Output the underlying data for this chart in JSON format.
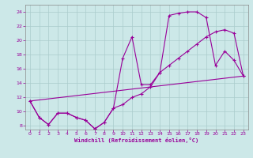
{
  "xlabel": "Windchill (Refroidissement éolien,°C)",
  "background_color": "#cce8e8",
  "grid_color": "#aacccc",
  "line_color": "#990099",
  "xlim": [
    -0.5,
    23.5
  ],
  "ylim": [
    7.5,
    25.0
  ],
  "xticks": [
    0,
    1,
    2,
    3,
    4,
    5,
    6,
    7,
    8,
    9,
    10,
    11,
    12,
    13,
    14,
    15,
    16,
    17,
    18,
    19,
    20,
    21,
    22,
    23
  ],
  "yticks": [
    8,
    10,
    12,
    14,
    16,
    18,
    20,
    22,
    24
  ],
  "series1_x": [
    0,
    1,
    2,
    3,
    4,
    5,
    6,
    7,
    8,
    9,
    10,
    11,
    12,
    13,
    14,
    15,
    16,
    17,
    18,
    19,
    20,
    21,
    22,
    23
  ],
  "series1_y": [
    11.5,
    9.2,
    8.2,
    9.8,
    9.8,
    9.2,
    8.8,
    7.6,
    8.5,
    10.5,
    17.5,
    20.5,
    13.8,
    13.8,
    15.5,
    23.5,
    23.8,
    24.0,
    24.0,
    23.2,
    16.5,
    18.5,
    17.2,
    15.0
  ],
  "series2_x": [
    0,
    1,
    2,
    3,
    4,
    5,
    6,
    7,
    8,
    9,
    10,
    11,
    12,
    13,
    14,
    15,
    16,
    17,
    18,
    19,
    20,
    21,
    22,
    23
  ],
  "series2_y": [
    11.5,
    9.2,
    8.2,
    9.8,
    9.8,
    9.2,
    8.8,
    7.6,
    8.5,
    10.5,
    11.0,
    12.0,
    12.5,
    13.5,
    15.5,
    16.5,
    17.5,
    18.5,
    19.5,
    20.5,
    21.2,
    21.5,
    21.0,
    15.0
  ],
  "series3_x": [
    0,
    23
  ],
  "series3_y": [
    11.5,
    15.0
  ]
}
